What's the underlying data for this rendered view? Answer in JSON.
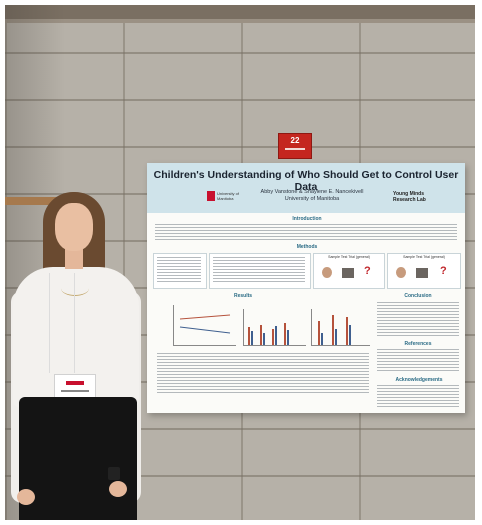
{
  "sign": {
    "room_number": "22"
  },
  "poster": {
    "title": "Children's Understanding of Who Should Get to Control User Data",
    "authors": "Abby Vanstone & Shaylene E. Nancekivell",
    "affiliation": "University of Manitoba",
    "logo_left": "University of Manitoba",
    "logo_right": "Young Minds Research Lab",
    "sections": {
      "introduction": "Introduction",
      "methods": "Methods",
      "results": "Results",
      "conclusion": "Conclusion",
      "references": "References",
      "acknowledgements": "Acknowledgements"
    },
    "panels": {
      "trial_a": "Sample Test Trial (general)",
      "trial_b": "Sample Test Trial (general)",
      "question_mark": "?"
    }
  },
  "colors": {
    "poster_header": "#cfe3ea",
    "section_heading": "#2a6b85",
    "sign_red": "#c4261f",
    "bar_red": "#b5523c",
    "bar_blue": "#3f5f8f"
  }
}
